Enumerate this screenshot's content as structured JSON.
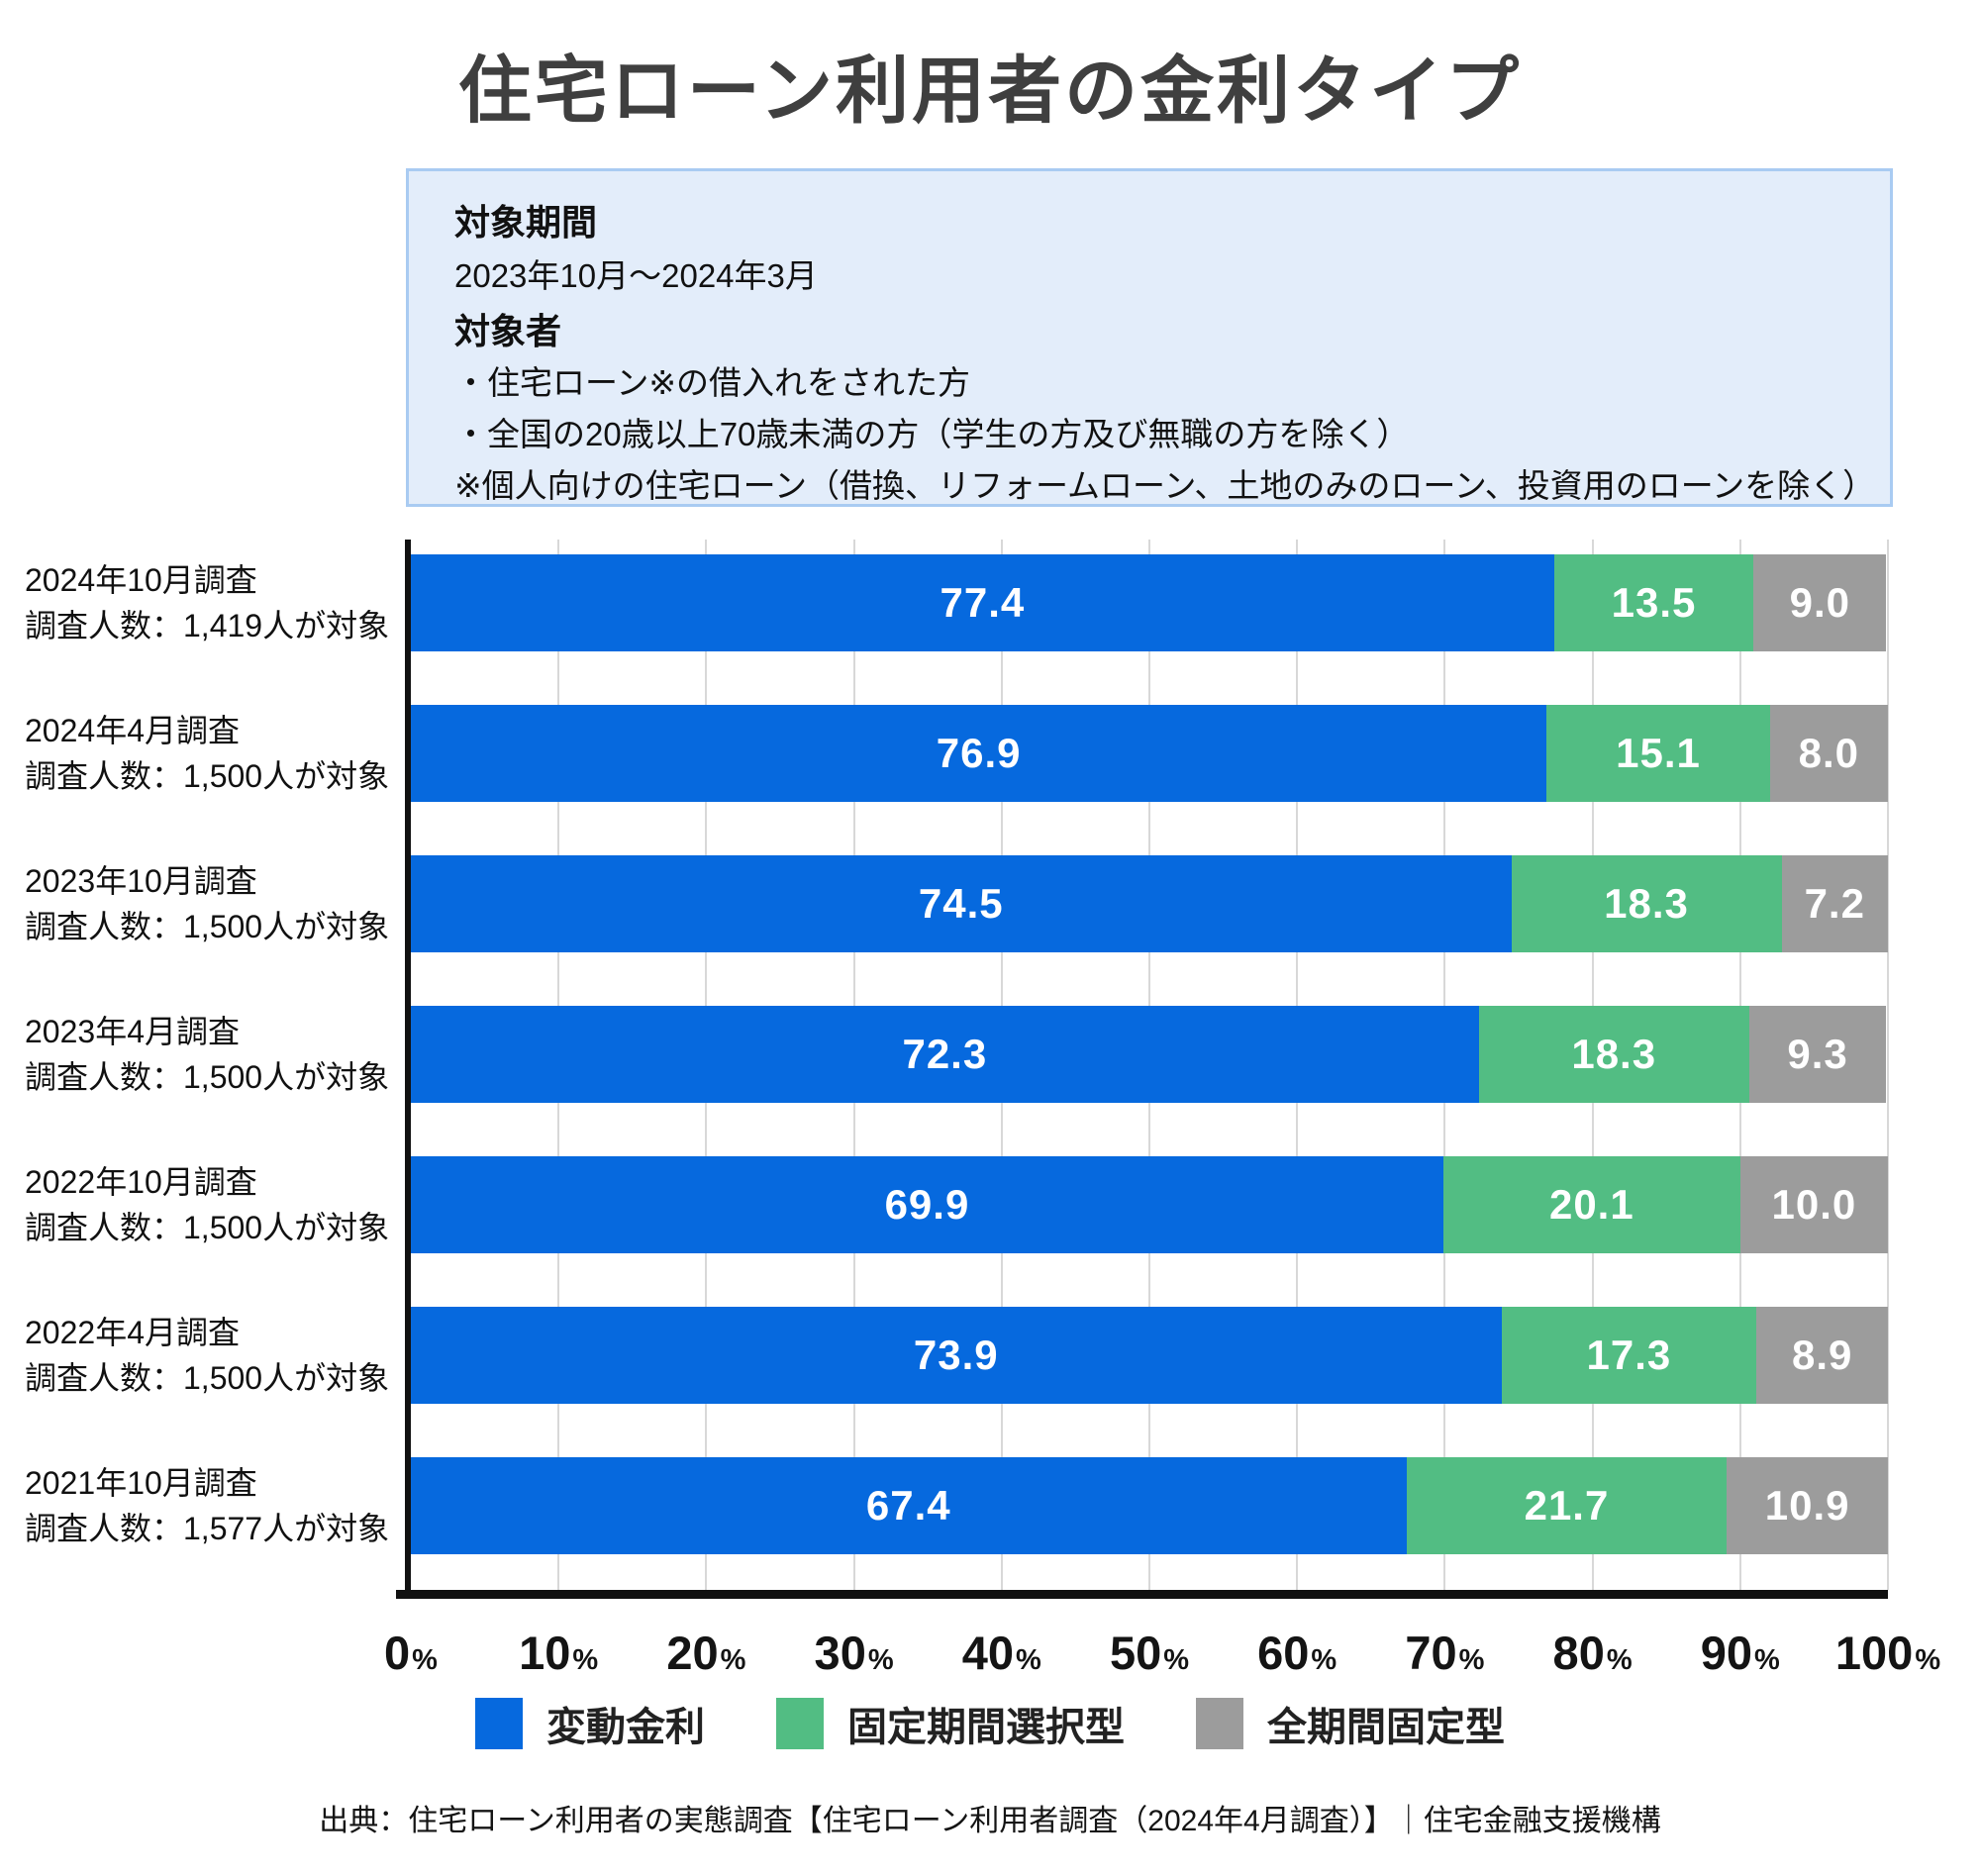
{
  "title": "住宅ローン利用者の金利タイプ",
  "info_box": {
    "period_label": "対象期間",
    "period_value": "2023年10月〜2024年3月",
    "audience_label": "対象者",
    "audience_lines": [
      "・住宅ローン※の借入れをされた方",
      "・全国の20歳以上70歳未満の方（学生の方及び無職の方を除く）",
      "※個人向けの住宅ローン（借換、リフォームローン、土地のみのローン、投資用のローンを除く）"
    ]
  },
  "chart_data": {
    "type": "bar",
    "orientation": "horizontal",
    "stacked": true,
    "unit": "%",
    "xlim": [
      0,
      100
    ],
    "grid": true,
    "legend_position": "bottom",
    "x_ticks": [
      "0%",
      "10%",
      "20%",
      "30%",
      "40%",
      "50%",
      "60%",
      "70%",
      "80%",
      "90%",
      "100%"
    ],
    "categories": [
      {
        "survey": "2024年10月調査",
        "sample": "調査人数：1,419人が対象"
      },
      {
        "survey": "2024年4月調査",
        "sample": "調査人数：1,500人が対象"
      },
      {
        "survey": "2023年10月調査",
        "sample": "調査人数：1,500人が対象"
      },
      {
        "survey": "2023年4月調査",
        "sample": "調査人数：1,500人が対象"
      },
      {
        "survey": "2022年10月調査",
        "sample": "調査人数：1,500人が対象"
      },
      {
        "survey": "2022年4月調査",
        "sample": "調査人数：1,500人が対象"
      },
      {
        "survey": "2021年10月調査",
        "sample": "調査人数：1,577人が対象"
      }
    ],
    "series": [
      {
        "id": "variable-rate",
        "name": "変動金利",
        "color": "#0669de",
        "values": [
          77.4,
          76.9,
          74.5,
          72.3,
          69.9,
          73.9,
          67.4
        ]
      },
      {
        "id": "fixed-period-select",
        "name": "固定期間選択型",
        "color": "#52bd83",
        "values": [
          13.5,
          15.1,
          18.3,
          18.3,
          20.1,
          17.3,
          21.7
        ]
      },
      {
        "id": "full-term-fixed",
        "name": "全期間固定型",
        "color": "#9c9c9c",
        "values": [
          9.0,
          8.0,
          7.2,
          9.3,
          10.0,
          8.9,
          10.9
        ]
      }
    ]
  },
  "source": "出典：住宅ローン利用者の実態調査【住宅ローン利用者調査（2024年4月調査）】｜住宅金融支援機構",
  "colors": {
    "info_box_bg": "#e3edfa",
    "info_box_border": "#a9cbf2",
    "gridline": "#d8d8d8",
    "axis": "#111111",
    "bar_label": "#ffffff",
    "title_text": "#3f3f3f"
  }
}
